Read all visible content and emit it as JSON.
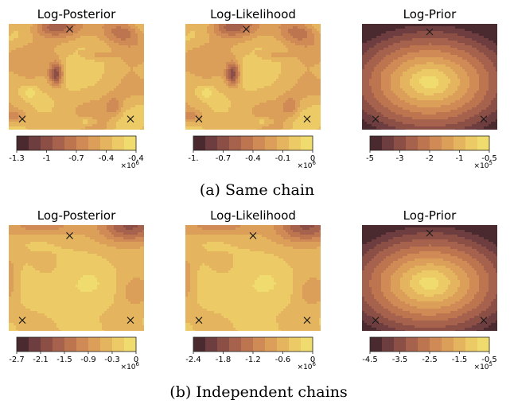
{
  "captions": [
    "(a) Same chain",
    "(b) Independent chains"
  ],
  "colors": {
    "palette": [
      "#4a2a2e",
      "#6e3d3f",
      "#8c4f46",
      "#a6624c",
      "#bd7550",
      "#cf8a55",
      "#dc9f5a",
      "#e5b45f",
      "#ecca66",
      "#f0dc6e"
    ],
    "marker": "#1a1a1a"
  },
  "chart_data": [
    {
      "type": "heatmap",
      "row": 0,
      "col": 0,
      "title": "Log-Posterior",
      "field": "likelihood_a",
      "colorbar": {
        "ticks": [
          "-1.3",
          "-1",
          "-0.7",
          "-0.4",
          "-0.4"
        ],
        "exponent_base": "×10",
        "exponent": "6"
      },
      "markers": [
        {
          "x": -0.1,
          "y": 0.9
        },
        {
          "x": -0.8,
          "y": -0.8
        },
        {
          "x": 0.8,
          "y": -0.8
        }
      ]
    },
    {
      "type": "heatmap",
      "row": 0,
      "col": 1,
      "title": "Log-Likelihood",
      "field": "likelihood_a",
      "colorbar": {
        "ticks": [
          "-1.",
          "-0.7",
          "-0.4",
          "-0.1",
          "0"
        ],
        "exponent_base": "×10",
        "exponent": "6"
      },
      "markers": [
        {
          "x": -0.1,
          "y": 0.9
        },
        {
          "x": -0.8,
          "y": -0.8
        },
        {
          "x": 0.8,
          "y": -0.8
        }
      ]
    },
    {
      "type": "heatmap",
      "row": 0,
      "col": 2,
      "title": "Log-Prior",
      "field": "prior",
      "colorbar": {
        "ticks": [
          "-5",
          "-3",
          "-2",
          "-1",
          "-0.5"
        ],
        "exponent_base": "×10",
        "exponent": "5"
      },
      "markers": [
        {
          "x": 0.0,
          "y": 0.85
        },
        {
          "x": -0.8,
          "y": -0.8
        },
        {
          "x": 0.8,
          "y": -0.8
        }
      ]
    },
    {
      "type": "heatmap",
      "row": 1,
      "col": 0,
      "title": "Log-Posterior",
      "field": "likelihood_b",
      "colorbar": {
        "ticks": [
          "-2.7",
          "-2.1",
          "-1.5",
          "-0.9",
          "-0.3",
          "0"
        ],
        "exponent_base": "×10",
        "exponent": "6"
      },
      "markers": [
        {
          "x": -0.1,
          "y": 0.8
        },
        {
          "x": -0.8,
          "y": -0.8
        },
        {
          "x": 0.8,
          "y": -0.8
        }
      ]
    },
    {
      "type": "heatmap",
      "row": 1,
      "col": 1,
      "title": "Log-Likelihood",
      "field": "likelihood_b",
      "colorbar": {
        "ticks": [
          "-2.4",
          "-1.8",
          "-1.2",
          "-0.6",
          "0"
        ],
        "exponent_base": "×10",
        "exponent": "6"
      },
      "markers": [
        {
          "x": 0.0,
          "y": 0.8
        },
        {
          "x": -0.8,
          "y": -0.8
        },
        {
          "x": 0.8,
          "y": -0.8
        }
      ]
    },
    {
      "type": "heatmap",
      "row": 1,
      "col": 2,
      "title": "Log-Prior",
      "field": "prior",
      "colorbar": {
        "ticks": [
          "-4.5",
          "-3.5",
          "-2.5",
          "-1.5",
          "-0.5"
        ],
        "exponent_base": "×10",
        "exponent": "5"
      },
      "markers": [
        {
          "x": 0.0,
          "y": 0.85
        },
        {
          "x": -0.8,
          "y": -0.8
        },
        {
          "x": 0.8,
          "y": -0.8
        }
      ]
    }
  ]
}
